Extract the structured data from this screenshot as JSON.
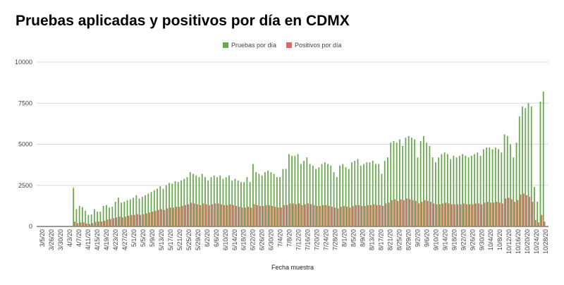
{
  "chart_data": {
    "type": "bar",
    "title": "Pruebas aplicadas y positivos por día en CDMX",
    "xlabel": "Fecha muestra",
    "ylabel": "",
    "ylim": [
      0,
      10000
    ],
    "yticks": [
      "0",
      "2500",
      "5000",
      "7500",
      "10000"
    ],
    "grid": true,
    "legend_position": "top-center",
    "x_tick_labels": [
      "3/5/20",
      "3/26/20",
      "3/30/20",
      "4/3/20",
      "4/7/20",
      "4/11/20",
      "4/15/20",
      "4/19/20",
      "4/23/20",
      "4/27/20",
      "5/1/20",
      "5/5/20",
      "5/9/20",
      "5/13/20",
      "5/17/20",
      "5/21/20",
      "5/25/20",
      "5/29/20",
      "6/2/20",
      "6/6/20",
      "6/10/20",
      "6/14/20",
      "6/18/20",
      "6/22/20",
      "6/26/20",
      "6/30/20",
      "7/4/20",
      "7/8/20",
      "7/12/20",
      "7/16/20",
      "7/20/20",
      "7/24/20",
      "7/28/20",
      "8/1/20",
      "8/5/20",
      "8/9/20",
      "8/13/20",
      "8/17/20",
      "8/21/20",
      "8/25/20",
      "8/29/20",
      "9/2/20",
      "9/6/20",
      "9/10/20",
      "9/14/20",
      "9/18/20",
      "9/22/20",
      "9/26/20",
      "9/30/20",
      "10/4/20",
      "10/8/20",
      "10/12/20",
      "10/16/20",
      "10/20/20",
      "10/24/20",
      "10/28/20"
    ],
    "series": [
      {
        "name": "Pruebas por día",
        "color": "#6aa84f",
        "values": [
          0,
          0,
          0,
          0,
          0,
          0,
          0,
          0,
          0,
          0,
          0,
          0,
          2350,
          1050,
          1250,
          1180,
          950,
          700,
          720,
          1050,
          900,
          900,
          1250,
          1300,
          1150,
          1200,
          1500,
          1750,
          1450,
          1500,
          1600,
          1650,
          1750,
          1900,
          1700,
          1800,
          1900,
          2000,
          2100,
          2200,
          2300,
          2450,
          2300,
          2500,
          2650,
          2600,
          2750,
          2700,
          2800,
          2900,
          3000,
          3300,
          3200,
          3100,
          3000,
          3200,
          3000,
          2800,
          3000,
          3100,
          3000,
          3100,
          2900,
          3000,
          3100,
          2800,
          2900,
          2800,
          2700,
          2700,
          3000,
          2700,
          3800,
          3300,
          3200,
          3100,
          3300,
          3400,
          3300,
          3200,
          3000,
          3000,
          3500,
          3500,
          4400,
          4300,
          4300,
          4400,
          3800,
          4000,
          4200,
          3800,
          3700,
          3500,
          3600,
          3800,
          3900,
          3800,
          3700,
          3300,
          3000,
          3700,
          3800,
          3600,
          3500,
          3900,
          4000,
          4100,
          3700,
          3800,
          3900,
          3900,
          4000,
          3800,
          3800,
          3200,
          4000,
          4200,
          5100,
          5200,
          5100,
          5300,
          4900,
          5400,
          5500,
          5400,
          5300,
          4200,
          5200,
          5500,
          5100,
          4900,
          4200,
          3900,
          4200,
          4400,
          4500,
          4400,
          4100,
          4300,
          4200,
          4300,
          4400,
          4300,
          4200,
          4300,
          4400,
          4500,
          4300,
          4700,
          4800,
          4800,
          4700,
          4800,
          4700,
          4500,
          5600,
          5500,
          5000,
          4200,
          5100,
          6700,
          7300,
          7200,
          7500,
          7300,
          2400,
          1500,
          7600,
          8200,
          0
        ]
      },
      {
        "name": "Positivos por día",
        "color": "#e06666",
        "values": [
          0,
          0,
          0,
          0,
          0,
          0,
          0,
          0,
          0,
          0,
          0,
          0,
          300,
          200,
          250,
          250,
          180,
          150,
          200,
          280,
          300,
          300,
          350,
          420,
          450,
          500,
          550,
          600,
          550,
          600,
          650,
          700,
          700,
          750,
          700,
          750,
          800,
          850,
          900,
          950,
          1000,
          1050,
          1000,
          1100,
          1150,
          1150,
          1200,
          1200,
          1250,
          1300,
          1350,
          1450,
          1400,
          1350,
          1300,
          1400,
          1350,
          1300,
          1350,
          1400,
          1400,
          1350,
          1300,
          1300,
          1350,
          1300,
          1250,
          1200,
          1150,
          1150,
          1200,
          1150,
          1350,
          1300,
          1250,
          1250,
          1300,
          1300,
          1250,
          1200,
          1150,
          1150,
          1300,
          1300,
          1400,
          1400,
          1350,
          1400,
          1300,
          1350,
          1400,
          1350,
          1300,
          1250,
          1250,
          1300,
          1300,
          1250,
          1200,
          1150,
          1100,
          1200,
          1250,
          1200,
          1150,
          1250,
          1300,
          1300,
          1250,
          1250,
          1300,
          1300,
          1350,
          1300,
          1300,
          1250,
          1400,
          1450,
          1600,
          1650,
          1550,
          1650,
          1600,
          1700,
          1650,
          1600,
          1550,
          1400,
          1500,
          1600,
          1550,
          1500,
          1400,
          1350,
          1350,
          1400,
          1450,
          1400,
          1350,
          1350,
          1350,
          1350,
          1400,
          1350,
          1350,
          1350,
          1400,
          1400,
          1350,
          1450,
          1500,
          1450,
          1450,
          1500,
          1450,
          1400,
          1700,
          1750,
          1650,
          1500,
          1600,
          1950,
          2000,
          1900,
          1800,
          1500,
          400,
          250,
          700,
          300,
          0
        ]
      }
    ]
  }
}
